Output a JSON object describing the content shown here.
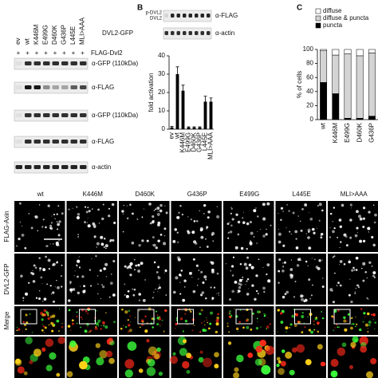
{
  "panel_a": {
    "lanes": [
      "ev",
      "wt",
      "K446M",
      "E499G",
      "D460K",
      "G436P",
      "L445E",
      "MLI>AAA"
    ],
    "construct": "DVL2-GFP",
    "treatment": {
      "label": "FLAG-Dvl2",
      "signs": [
        "+",
        "+",
        "+",
        "+",
        "+",
        "+",
        "+",
        "+"
      ]
    },
    "blots": [
      "α-GFP (110kDa)",
      "α-FLAG",
      "α-GFP (110kDa)",
      "α-FLAG",
      "α-actin"
    ]
  },
  "panel_b": {
    "letter": "B",
    "bands": [
      "p-DVL2",
      "DVL2"
    ],
    "blots": [
      "α-FLAG",
      "α-actin"
    ],
    "chart_data": {
      "type": "bar",
      "y_label": "fold activation",
      "categories": [
        "ev",
        "wt",
        "K446M",
        "E499G",
        "D460K",
        "G436P",
        "L445E",
        "MLI>AAA"
      ],
      "values": [
        1,
        30,
        21,
        1,
        1,
        1,
        15,
        15
      ],
      "errors": [
        0.5,
        4,
        3,
        0.3,
        0.3,
        0.3,
        3,
        2
      ],
      "color": "#000000",
      "ylim": [
        0,
        40
      ],
      "yticks": [
        0,
        10,
        20,
        30,
        40
      ]
    }
  },
  "panel_c": {
    "letter": "C",
    "chart_data": {
      "type": "stacked-bar",
      "y_label": "% of cells",
      "categories": [
        "wt",
        "K446M",
        "E499G",
        "D460K",
        "G436P"
      ],
      "series": [
        {
          "name": "puncta",
          "color": "#000000",
          "values": [
            53,
            37,
            2,
            2,
            5
          ]
        },
        {
          "name": "diffuse & puncta",
          "color": "#d4d4d4",
          "values": [
            45,
            55,
            92,
            89,
            90
          ]
        },
        {
          "name": "diffuse",
          "color": "#ffffff",
          "values": [
            2,
            8,
            6,
            9,
            5
          ]
        }
      ],
      "ylim": [
        0,
        100
      ],
      "yticks": [
        0,
        20,
        40,
        60,
        80,
        100
      ]
    }
  },
  "microscopy": {
    "columns": [
      "wt",
      "K446M",
      "D460K",
      "G436P",
      "E499G",
      "L445E",
      "MLI>AAA"
    ],
    "rows": [
      "FLAG-Axin",
      "DVL2-GFP",
      "Merge"
    ]
  }
}
